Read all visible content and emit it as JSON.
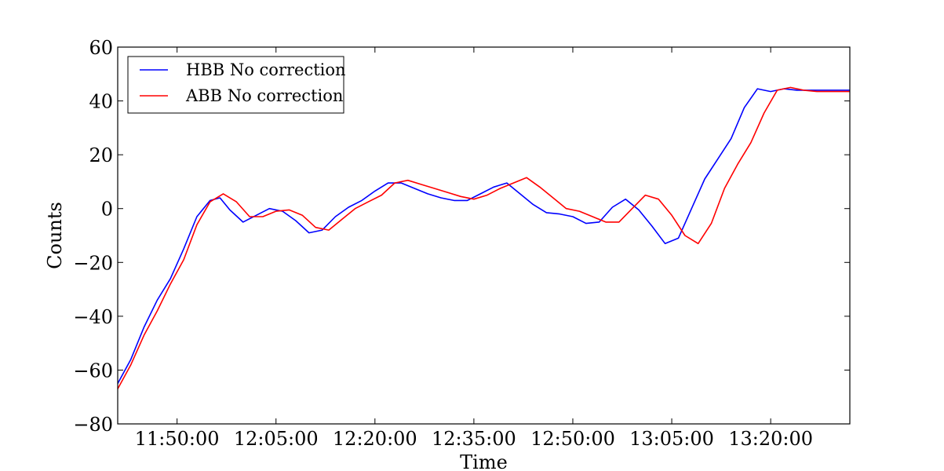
{
  "chart_data": {
    "type": "line",
    "xlabel": "Time",
    "ylabel": "Counts",
    "x_tick_labels": [
      "11:50:00",
      "12:05:00",
      "12:20:00",
      "12:35:00",
      "12:50:00",
      "13:05:00",
      "13:20:00"
    ],
    "x_tick_values": [
      710,
      725,
      740,
      755,
      770,
      785,
      800
    ],
    "xlim": [
      701,
      812
    ],
    "ylim": [
      -80,
      60
    ],
    "y_ticks": [
      -80,
      -60,
      -40,
      -20,
      0,
      20,
      40,
      60
    ],
    "y_tick_labels": [
      "−80",
      "−60",
      "−40",
      "−20",
      "0",
      "20",
      "40",
      "60"
    ],
    "legend": {
      "position": "upper-left"
    },
    "grid": false,
    "series": [
      {
        "name": "HBB No correction",
        "color": "#0000ff",
        "x": [
          701,
          703,
          705,
          707,
          709,
          711,
          713,
          715,
          716.5,
          718,
          720,
          722,
          724,
          726,
          728,
          730,
          732,
          734,
          736,
          738,
          740,
          742,
          744,
          746,
          748,
          750,
          752,
          754,
          756,
          758,
          760,
          762,
          764,
          766,
          768,
          770,
          772,
          774,
          776,
          778,
          780,
          782,
          784,
          786,
          788,
          790,
          792,
          794,
          796,
          798,
          800,
          802,
          804,
          806,
          808,
          810,
          812
        ],
        "values": [
          -65,
          -56,
          -44,
          -34,
          -26,
          -15,
          -3,
          3,
          4,
          -0.5,
          -5,
          -2.5,
          0,
          -1,
          -4.5,
          -9,
          -8,
          -3,
          0.5,
          3,
          6.5,
          9.5,
          9.5,
          7.5,
          5.5,
          4,
          3,
          3,
          5.5,
          8,
          9.5,
          5.5,
          1.5,
          -1.5,
          -2,
          -3,
          -5.5,
          -5,
          0.5,
          3.5,
          -0.5,
          -6.5,
          -13,
          -11,
          0,
          11,
          18.5,
          26,
          37.5,
          44.5,
          43.5,
          44.5,
          44,
          44,
          44,
          44,
          44
        ]
      },
      {
        "name": "ABB No correction",
        "color": "#ff0000",
        "x": [
          701,
          703,
          705,
          707,
          709,
          711,
          713,
          715,
          717,
          719,
          721,
          723,
          725,
          727,
          729,
          731,
          733,
          735,
          737,
          739,
          741,
          743,
          745,
          747,
          749,
          751,
          753,
          755,
          757,
          759,
          761,
          763,
          765,
          767,
          769,
          771,
          773,
          775,
          777,
          779,
          781,
          783,
          785,
          787,
          789,
          791,
          793,
          795,
          797,
          799,
          801,
          803,
          805,
          807,
          809,
          811,
          812
        ],
        "values": [
          -67,
          -58,
          -47,
          -38,
          -28,
          -19,
          -6,
          2.5,
          5.5,
          2.5,
          -3,
          -3,
          -1,
          -0.5,
          -2.5,
          -7,
          -8,
          -4,
          0,
          2.5,
          5,
          9.5,
          10.5,
          9,
          7.5,
          6,
          4.5,
          3.5,
          5,
          7.5,
          9.5,
          11.5,
          8,
          4,
          0,
          -1,
          -3,
          -5,
          -5,
          0,
          5,
          3.5,
          -2.5,
          -10,
          -13,
          -5.5,
          7.5,
          16.5,
          24.5,
          35.5,
          44,
          45,
          44,
          43.5,
          43.5,
          43.5,
          43.5
        ]
      }
    ]
  }
}
